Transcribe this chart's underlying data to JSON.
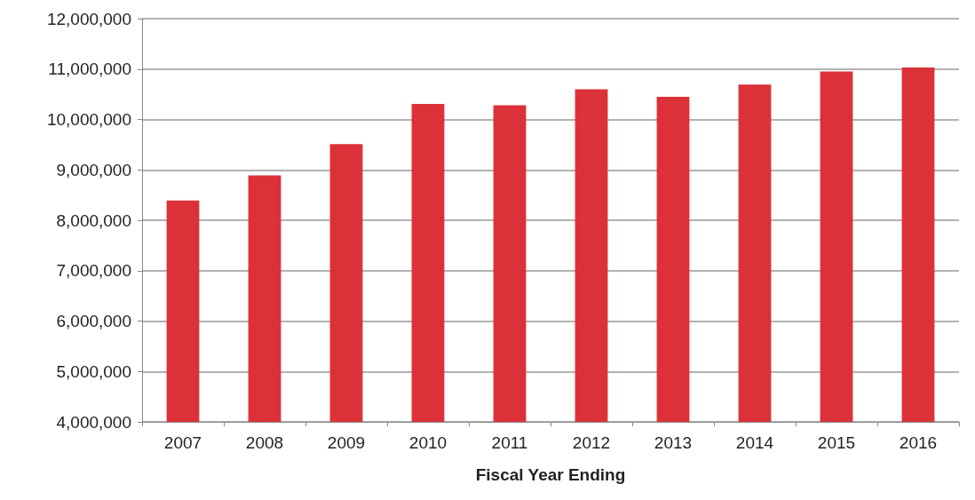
{
  "chart_data": {
    "type": "bar",
    "xlabel": "Fiscal Year Ending",
    "categories": [
      "2007",
      "2008",
      "2009",
      "2010",
      "2011",
      "2012",
      "2013",
      "2014",
      "2015",
      "2016"
    ],
    "values": [
      8390000,
      8890000,
      9510000,
      10310000,
      10280000,
      10600000,
      10450000,
      10690000,
      10950000,
      11030000
    ],
    "color": "#dc3139",
    "ylim": [
      4000000,
      12000000
    ],
    "yticks": [
      {
        "value": 4000000,
        "label": "4,000,000"
      },
      {
        "value": 5000000,
        "label": "5,000,000"
      },
      {
        "value": 6000000,
        "label": "6,000,000"
      },
      {
        "value": 7000000,
        "label": "7,000,000"
      },
      {
        "value": 8000000,
        "label": "8,000,000"
      },
      {
        "value": 9000000,
        "label": "9,000,000"
      },
      {
        "value": 10000000,
        "label": "10,000,000"
      },
      {
        "value": 11000000,
        "label": "11,000,000"
      },
      {
        "value": 12000000,
        "label": "12,000,000"
      }
    ],
    "grid": "y"
  }
}
